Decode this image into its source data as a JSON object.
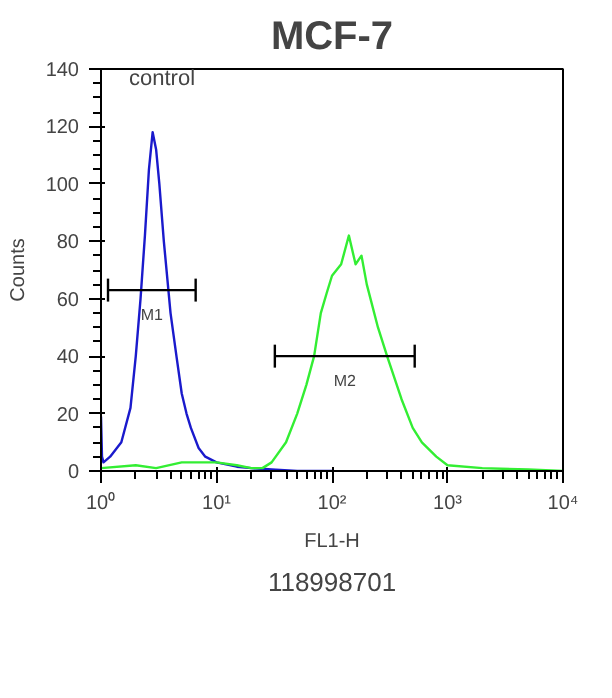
{
  "chart_data": {
    "type": "line",
    "title": "MCF-7",
    "xlabel": "FL1-H",
    "ylabel": "Counts",
    "log": "x",
    "grid": false,
    "legend": false,
    "marker": "none",
    "line_style": "solid",
    "xlim": [
      1,
      10000
    ],
    "ylim": [
      0,
      140
    ],
    "xticks": [
      {
        "value": 1,
        "label": "10⁰"
      },
      {
        "value": 10,
        "label": "10¹"
      },
      {
        "value": 100,
        "label": "10²"
      },
      {
        "value": 1000,
        "label": "10³"
      },
      {
        "value": 10000,
        "label": "10⁴"
      }
    ],
    "yticks": [
      0,
      20,
      40,
      60,
      80,
      100,
      120,
      140
    ],
    "series": [
      {
        "color": "#1a1acc",
        "x": [
          1.0,
          1.02,
          1.05,
          1.2,
          1.5,
          1.8,
          2.0,
          2.2,
          2.4,
          2.6,
          2.8,
          3.0,
          3.2,
          3.5,
          4.0,
          4.5,
          5.0,
          5.5,
          6.0,
          7.0,
          8.0,
          10,
          15,
          20,
          30,
          50,
          100
        ],
        "values": [
          19,
          5,
          3,
          5,
          10,
          22,
          40,
          60,
          82,
          105,
          118,
          112,
          100,
          80,
          55,
          40,
          27,
          20,
          15,
          8,
          5,
          3,
          1.5,
          1,
          0.5,
          0,
          0
        ]
      },
      {
        "color": "#33ee33",
        "x": [
          1,
          2,
          3,
          5,
          7,
          10,
          15,
          20,
          25,
          30,
          40,
          50,
          60,
          70,
          80,
          90,
          100,
          120,
          140,
          160,
          180,
          200,
          250,
          300,
          400,
          500,
          600,
          800,
          1000,
          2000,
          5000,
          10000
        ],
        "values": [
          1,
          2,
          1,
          3,
          3,
          3,
          2,
          1,
          1,
          3,
          10,
          20,
          30,
          40,
          55,
          62,
          68,
          72,
          82,
          72,
          75,
          65,
          50,
          40,
          25,
          15,
          10,
          5,
          2,
          1,
          0.5,
          0
        ]
      },
      {
        "name": "M1",
        "color": "#000000",
        "x": [
          1.15,
          6.6
        ],
        "values": [
          63,
          63
        ],
        "errors": [
          4,
          4
        ]
      },
      {
        "name": "M2",
        "color": "#000000",
        "x": [
          32,
          520
        ],
        "values": [
          40,
          40
        ],
        "errors": [
          4,
          4
        ]
      }
    ],
    "annotations": [
      "control",
      "118998701"
    ]
  }
}
